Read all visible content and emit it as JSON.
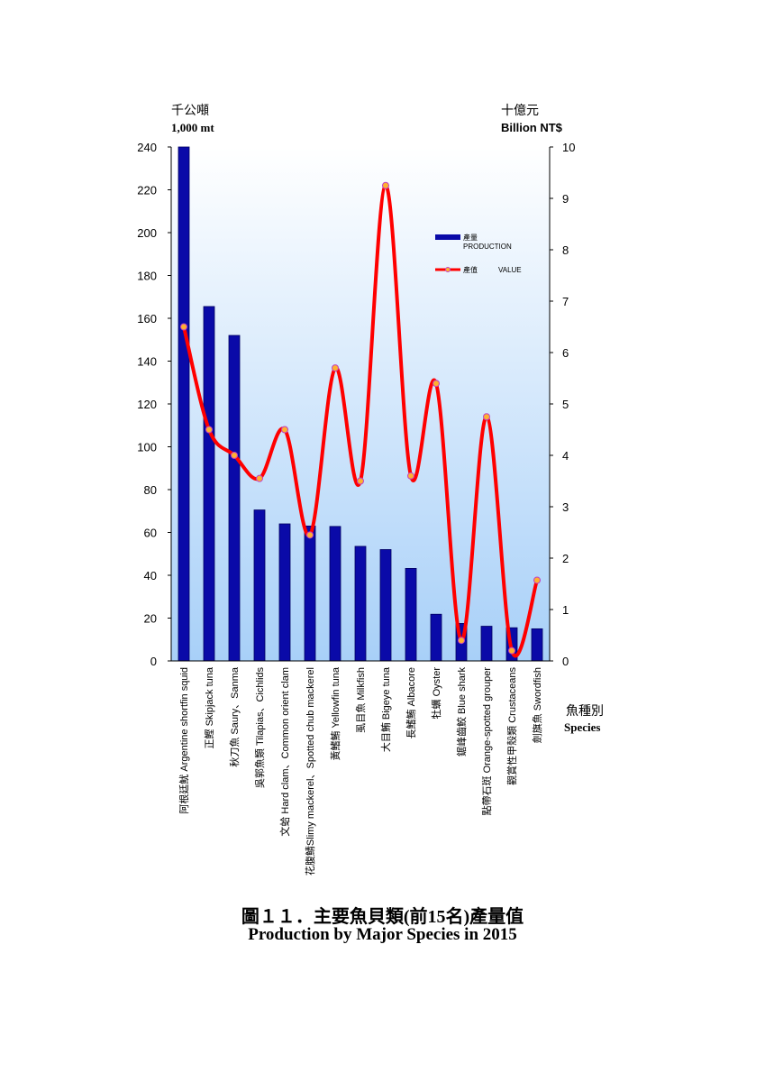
{
  "caption": {
    "zh": "圖１１．主要魚貝類(前15名)產量值",
    "en": "Production by Major Species in 2015"
  },
  "axis": {
    "left_unit_zh": "千公噸",
    "left_unit_en": "1,000 mt",
    "right_unit_zh": "十億元",
    "right_unit_en": "Billion NT$",
    "x_label_zh": "魚種別",
    "x_label_en": "Species"
  },
  "legend": {
    "production_zh": "產量",
    "production_en": "PRODUCTION",
    "value_zh": "產值",
    "value_en": "VALUE"
  },
  "colors": {
    "bar": "#0a0aa8",
    "bar_edge": "#000060",
    "line": "#ff0000",
    "marker": "#ffb030",
    "marker_edge": "#c040c0",
    "bg_top": "#ffffff",
    "bg_bottom": "#a8d0f8"
  },
  "chart_data": {
    "type": "bar",
    "categories": [
      "阿根廷魷 Argentine shortfin squid",
      "正鰹 Skipjack tuna",
      "秋刀魚 Saury、Sanma",
      "吳郭魚類 Tilapias、Cichlids",
      "文蛤 Hard clam、Common orient clam",
      "花腹鯖Slimy mackerel、Spotted chub mackerel",
      "黃鰭鮪 Yellowfin tuna",
      "虱目魚 Milkfish",
      "大目鮪 Bigeye tuna",
      "長鰭鮪 Albacore",
      "牡蠣 Oyster",
      "鋸峰齒鮫 Blue shark",
      "點帶石斑 Orange-spotted grouper",
      "觀賞性甲殼類 Crustaceans",
      "劍旗魚 Swordfish"
    ],
    "series": [
      {
        "name": "產量 PRODUCTION",
        "axis": "left",
        "type": "bar",
        "values": [
          240,
          165.5,
          152,
          70.5,
          64,
          63,
          62.8,
          53.5,
          52,
          43.2,
          21.8,
          17.5,
          16.2,
          15.5,
          15
        ]
      },
      {
        "name": "產值 VALUE",
        "axis": "right",
        "type": "line",
        "values": [
          6.5,
          4.5,
          4.0,
          3.55,
          4.5,
          2.45,
          5.7,
          3.5,
          9.25,
          3.6,
          5.4,
          0.4,
          4.75,
          0.2,
          1.57
        ]
      }
    ],
    "ylim_left": [
      0,
      240
    ],
    "yticks_left": [
      0,
      20,
      40,
      60,
      80,
      100,
      120,
      140,
      160,
      180,
      200,
      220,
      240
    ],
    "ylim_right": [
      0,
      10
    ],
    "yticks_right": [
      0,
      1,
      2,
      3,
      4,
      5,
      6,
      7,
      8,
      9,
      10
    ],
    "grid": false,
    "legend_position": "top-right"
  }
}
